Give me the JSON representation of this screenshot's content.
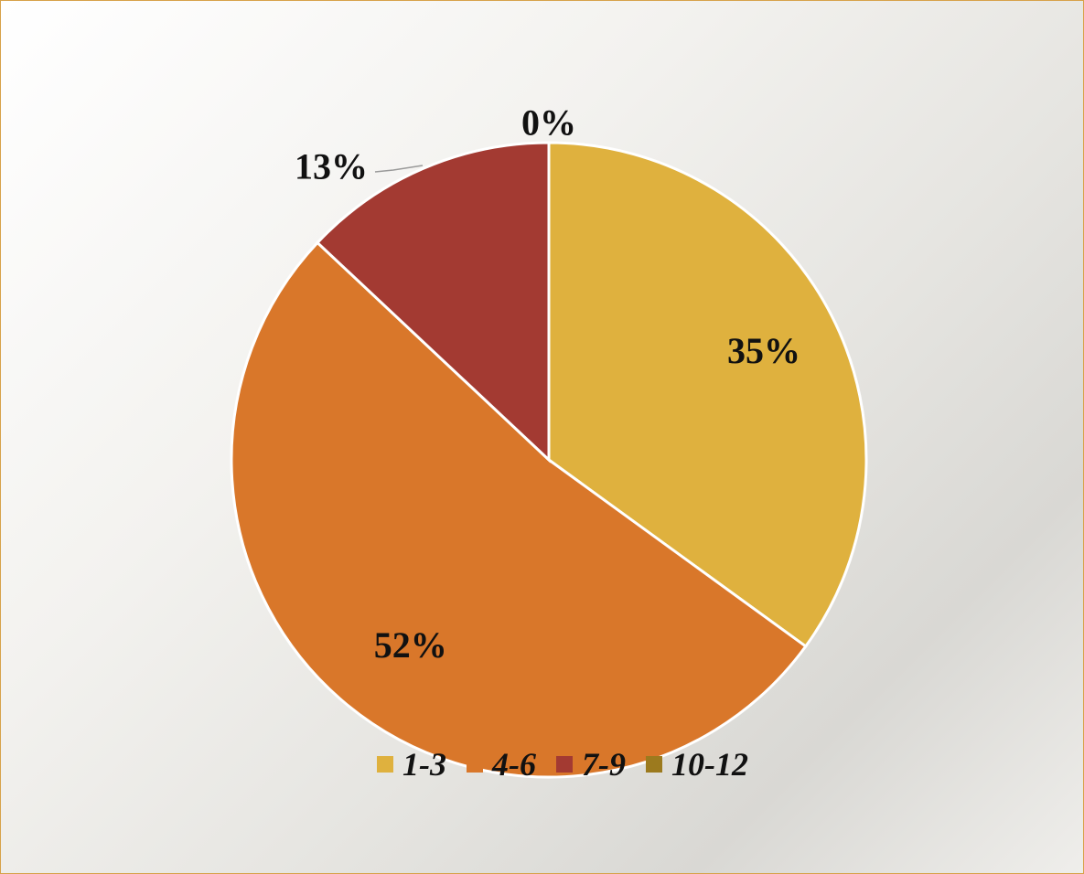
{
  "chart_data": {
    "type": "pie",
    "title": "",
    "categories": [
      "1-3",
      "4-6",
      "7-9",
      "10-12"
    ],
    "values": [
      35,
      52,
      13,
      0
    ],
    "unit": "%",
    "colors": [
      "#DFB13E",
      "#D9772A",
      "#A33A32",
      "#9C7A1E"
    ],
    "data_labels": [
      "35%",
      "52%",
      "13%",
      "0%"
    ],
    "legend_position": "bottom",
    "start_angle": "12 o'clock",
    "direction": "clockwise"
  }
}
